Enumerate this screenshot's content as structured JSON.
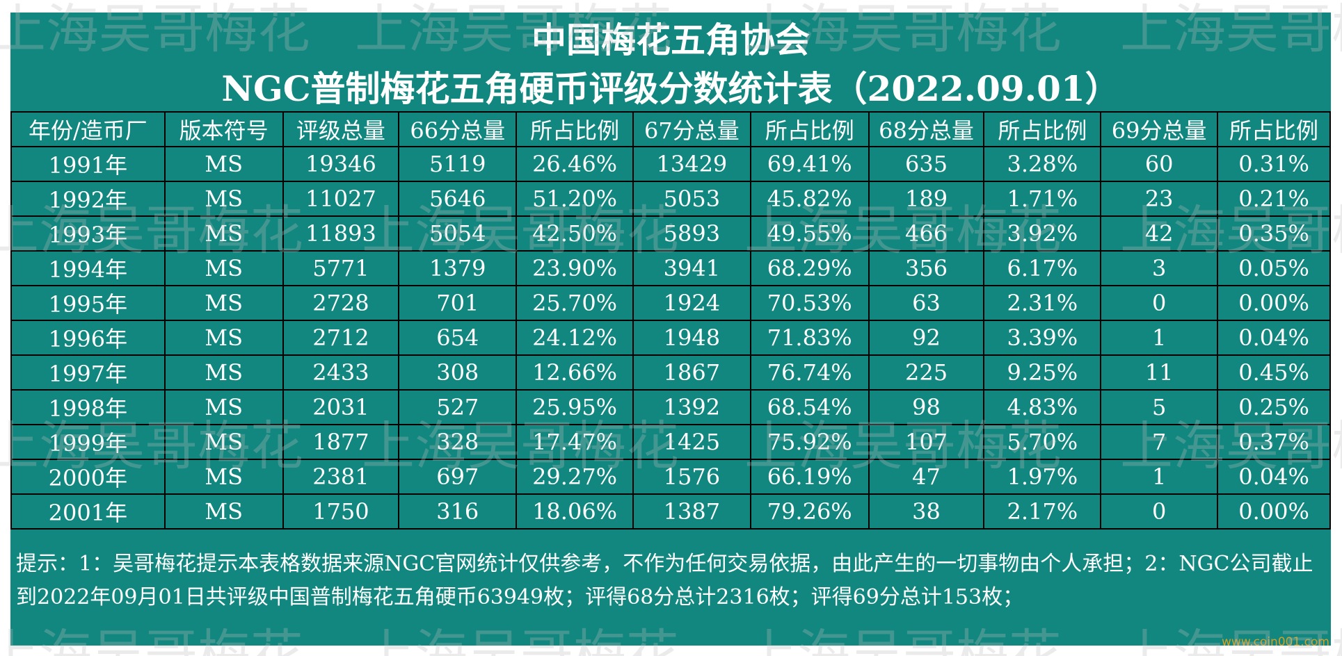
{
  "header": {
    "title": "中国梅花五角协会",
    "subtitle": "NGC普制梅花五角硬币评级分数统计表（2022.09.01）"
  },
  "table": {
    "columns": [
      "年份/造币厂",
      "版本符号",
      "评级总量",
      "66分总量",
      "所占比例",
      "67分总量",
      "所占比例",
      "68分总量",
      "所占比例",
      "69分总量",
      "所占比例"
    ],
    "rows": [
      [
        "1991年",
        "MS",
        "19346",
        "5119",
        "26.46%",
        "13429",
        "69.41%",
        "635",
        "3.28%",
        "60",
        "0.31%"
      ],
      [
        "1992年",
        "MS",
        "11027",
        "5646",
        "51.20%",
        "5053",
        "45.82%",
        "189",
        "1.71%",
        "23",
        "0.21%"
      ],
      [
        "1993年",
        "MS",
        "11893",
        "5054",
        "42.50%",
        "5893",
        "49.55%",
        "466",
        "3.92%",
        "42",
        "0.35%"
      ],
      [
        "1994年",
        "MS",
        "5771",
        "1379",
        "23.90%",
        "3941",
        "68.29%",
        "356",
        "6.17%",
        "3",
        "0.05%"
      ],
      [
        "1995年",
        "MS",
        "2728",
        "701",
        "25.70%",
        "1924",
        "70.53%",
        "63",
        "2.31%",
        "0",
        "0.00%"
      ],
      [
        "1996年",
        "MS",
        "2712",
        "654",
        "24.12%",
        "1948",
        "71.83%",
        "92",
        "3.39%",
        "1",
        "0.04%"
      ],
      [
        "1997年",
        "MS",
        "2433",
        "308",
        "12.66%",
        "1867",
        "76.74%",
        "225",
        "9.25%",
        "11",
        "0.45%"
      ],
      [
        "1998年",
        "MS",
        "2031",
        "527",
        "25.95%",
        "1392",
        "68.54%",
        "98",
        "4.83%",
        "5",
        "0.25%"
      ],
      [
        "1999年",
        "MS",
        "1877",
        "328",
        "17.47%",
        "1425",
        "75.92%",
        "107",
        "5.70%",
        "7",
        "0.37%"
      ],
      [
        "2000年",
        "MS",
        "2381",
        "697",
        "29.27%",
        "1576",
        "66.19%",
        "47",
        "1.97%",
        "1",
        "0.04%"
      ],
      [
        "2001年",
        "MS",
        "1750",
        "316",
        "18.06%",
        "1387",
        "79.26%",
        "38",
        "2.17%",
        "0",
        "0.00%"
      ]
    ]
  },
  "note": "提示：1：吴哥梅花提示本表格数据来源NGC官网统计仅供参考，不作为任何交易依据，由此产生的一切事物由个人承担；2：NGC公司截止到2022年09月01日共评级中国普制梅花五角硬币63949枚；评得68分总计2316枚；评得69分总计153枚；",
  "watermark": "上海吴哥梅花",
  "site": "www.coin001.com"
}
